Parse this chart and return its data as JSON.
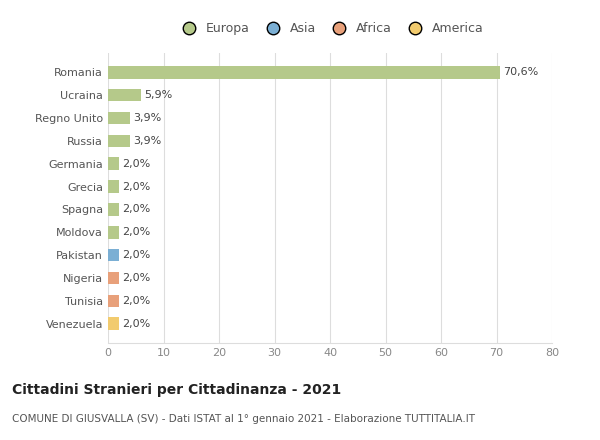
{
  "categories": [
    "Venezuela",
    "Tunisia",
    "Nigeria",
    "Pakistan",
    "Moldova",
    "Spagna",
    "Grecia",
    "Germania",
    "Russia",
    "Regno Unito",
    "Ucraina",
    "Romania"
  ],
  "values": [
    2.0,
    2.0,
    2.0,
    2.0,
    2.0,
    2.0,
    2.0,
    2.0,
    3.9,
    3.9,
    5.9,
    70.6
  ],
  "labels": [
    "2,0%",
    "2,0%",
    "2,0%",
    "2,0%",
    "2,0%",
    "2,0%",
    "2,0%",
    "2,0%",
    "3,9%",
    "3,9%",
    "5,9%",
    "70,6%"
  ],
  "colors": [
    "#f2cb6e",
    "#e8a07a",
    "#e8a07a",
    "#7bafd4",
    "#b5c98a",
    "#b5c98a",
    "#b5c98a",
    "#b5c98a",
    "#b5c98a",
    "#b5c98a",
    "#b5c98a",
    "#b5c98a"
  ],
  "legend_labels": [
    "Europa",
    "Asia",
    "Africa",
    "America"
  ],
  "legend_colors": [
    "#b5c98a",
    "#7bafd4",
    "#e8a07a",
    "#f2cb6e"
  ],
  "title": "Cittadini Stranieri per Cittadinanza - 2021",
  "subtitle": "COMUNE DI GIUSVALLA (SV) - Dati ISTAT al 1° gennaio 2021 - Elaborazione TUTTITALIA.IT",
  "xlim": [
    0,
    80
  ],
  "xticks": [
    0,
    10,
    20,
    30,
    40,
    50,
    60,
    70,
    80
  ],
  "bg_color": "#ffffff",
  "grid_color": "#dddddd",
  "bar_height": 0.55,
  "label_fontsize": 8,
  "tick_fontsize": 8,
  "legend_fontsize": 9,
  "title_fontsize": 10,
  "subtitle_fontsize": 7.5
}
